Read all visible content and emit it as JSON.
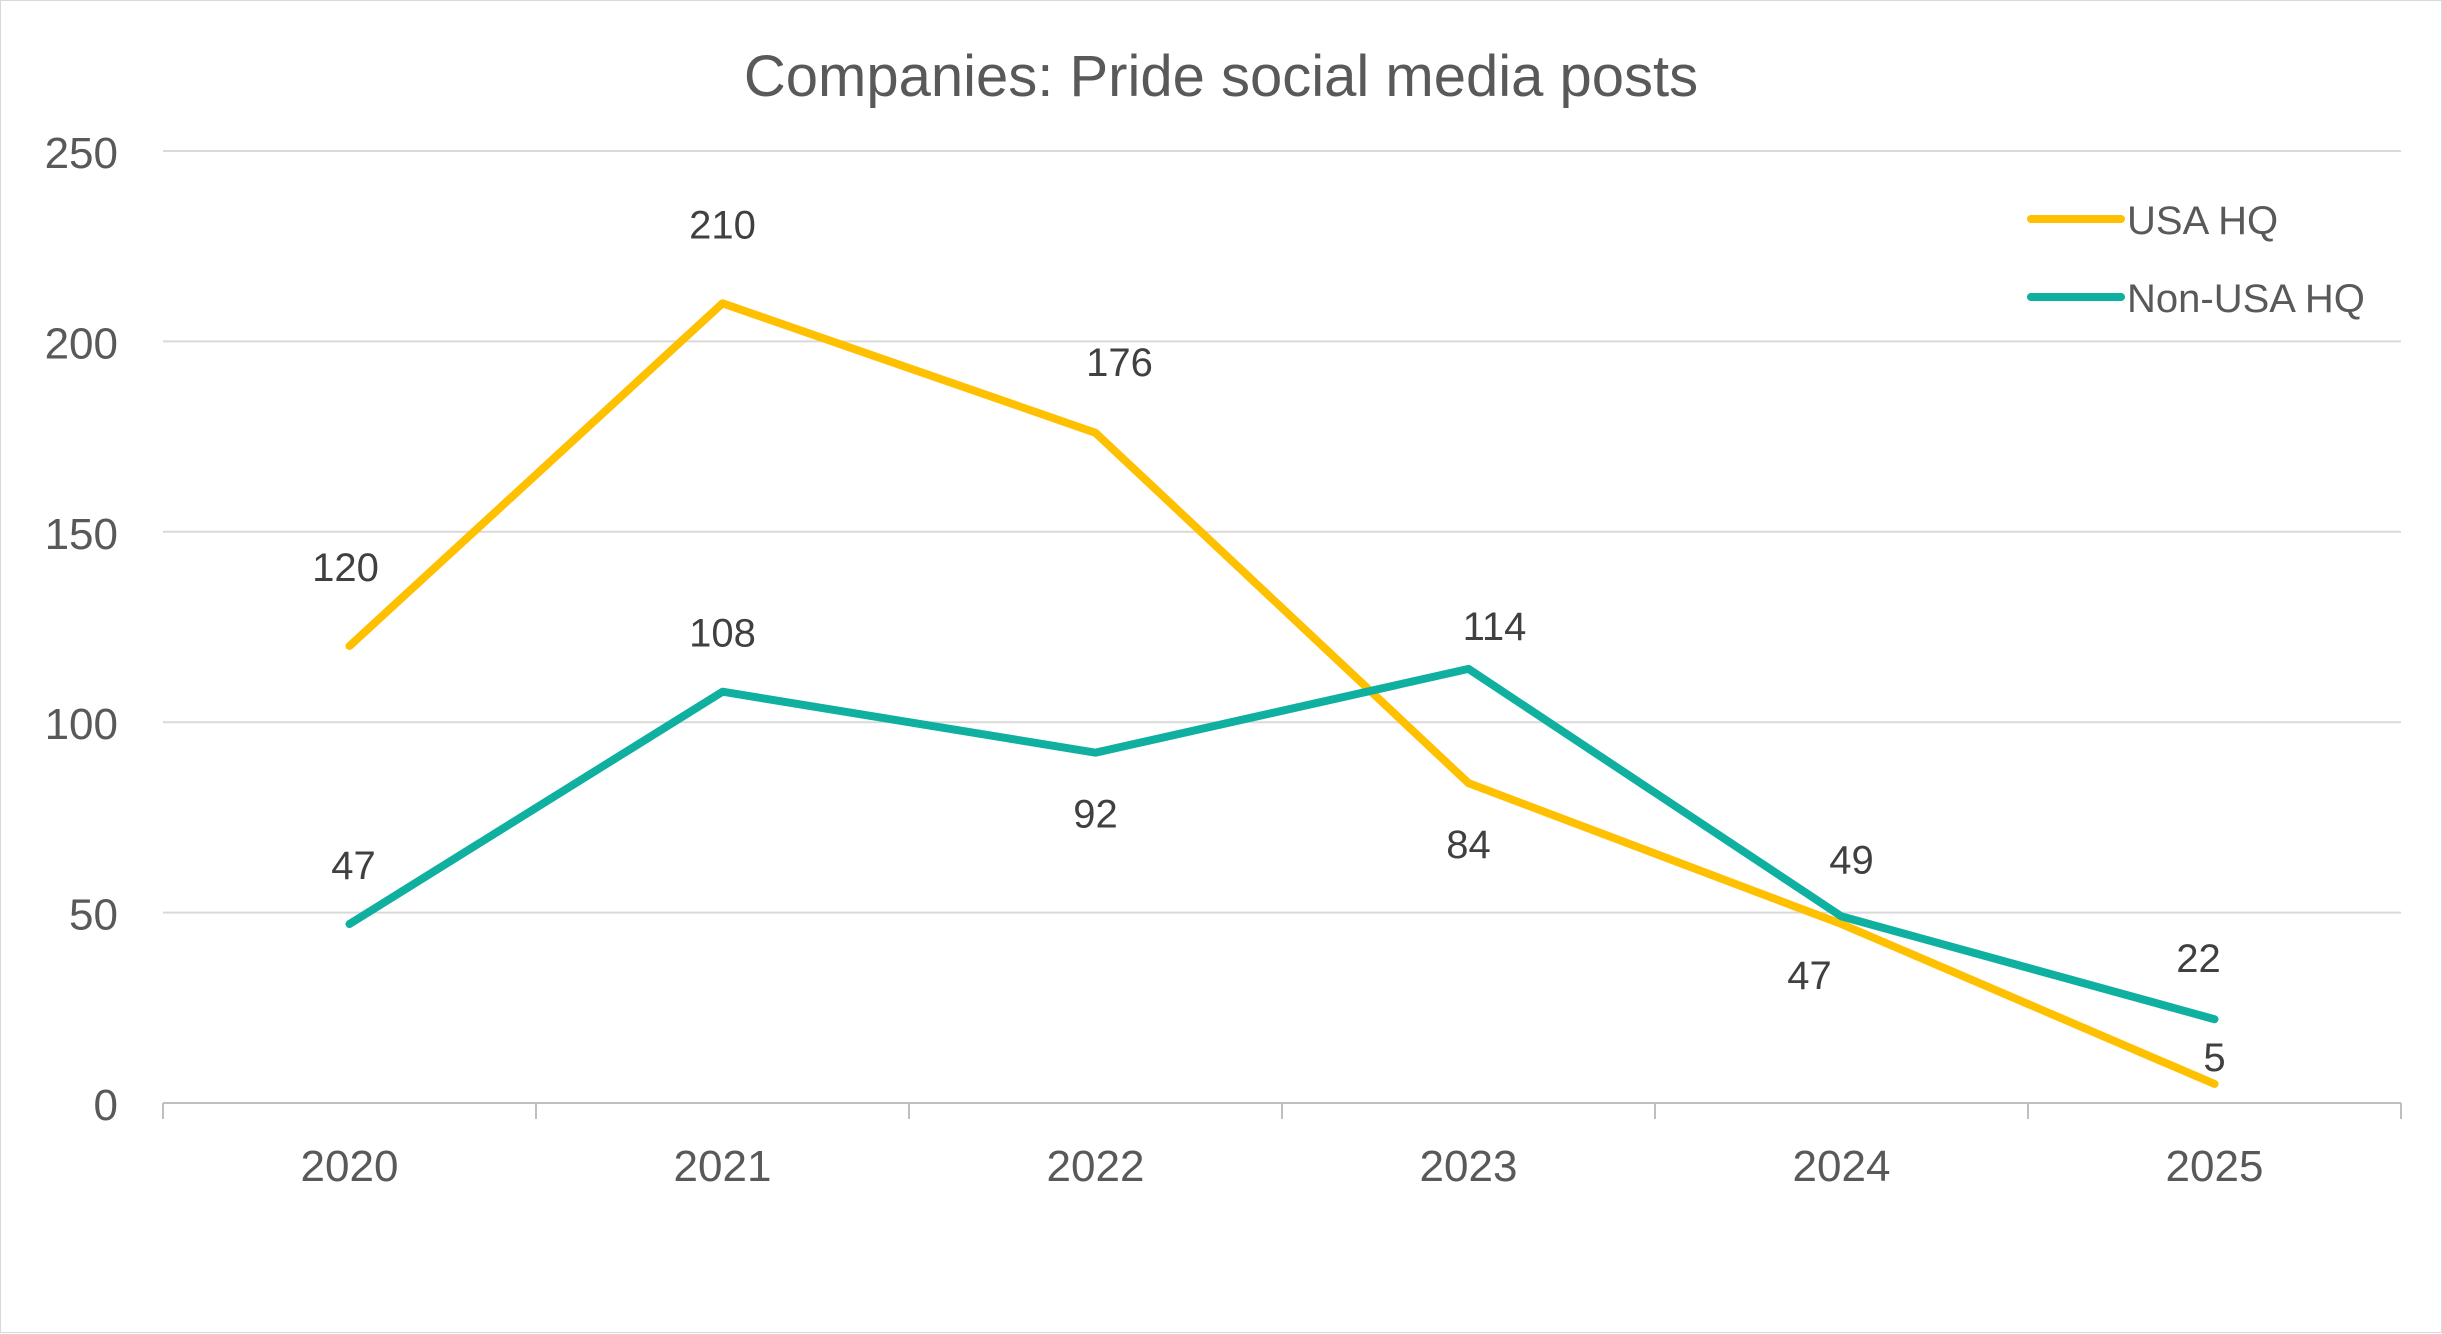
{
  "chart_data": {
    "type": "line",
    "title": "Companies: Pride social media posts",
    "xlabel": "",
    "ylabel": "",
    "categories": [
      "2020",
      "2021",
      "2022",
      "2023",
      "2024",
      "2025"
    ],
    "ylim": [
      0,
      250
    ],
    "yticks": [
      "0",
      "50",
      "100",
      "150",
      "200",
      "250"
    ],
    "grid": true,
    "legend_position": "top-right",
    "series": [
      {
        "name": "USA HQ",
        "color": "#FFC000",
        "values": [
          120,
          210,
          176,
          84,
          47,
          5
        ]
      },
      {
        "name": "Non-USA HQ",
        "color": "#10B0A0",
        "values": [
          47,
          108,
          92,
          114,
          49,
          22
        ]
      }
    ],
    "colors": {
      "gridline": "#d9d9d9",
      "axis": "#bfbfbf",
      "title_text": "#595959",
      "tick_text": "#595959",
      "label_text": "#404040"
    }
  }
}
